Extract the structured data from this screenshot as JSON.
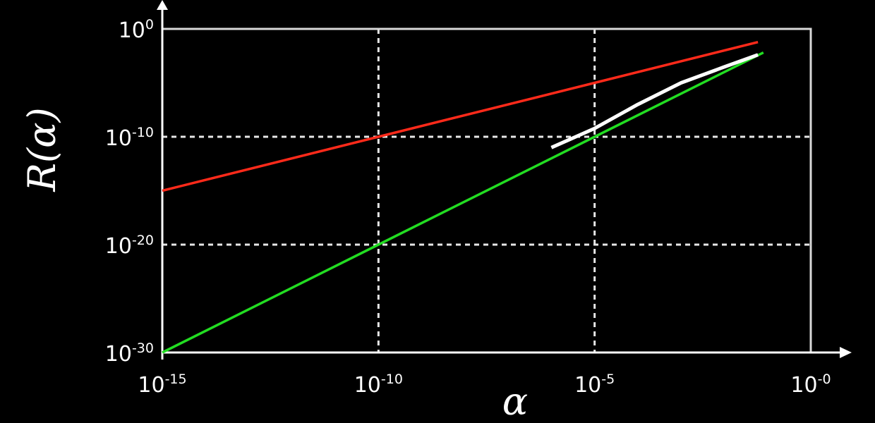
{
  "chart_data": {
    "type": "line",
    "xscale": "log",
    "yscale": "log",
    "xlabel": "α",
    "ylabel": "R(α)",
    "xlim": [
      1e-15,
      1
    ],
    "ylim": [
      1e-30,
      1
    ],
    "grid": "dashed",
    "x_ticks": [
      {
        "base": "10",
        "exp": "-15",
        "value": 1e-15
      },
      {
        "base": "10",
        "exp": "-10",
        "value": 1e-10
      },
      {
        "base": "10",
        "exp": "-5",
        "value": 1e-05
      },
      {
        "base": "10",
        "exp": "-0",
        "value": 1
      }
    ],
    "y_ticks": [
      {
        "base": "10",
        "exp": "0",
        "value": 1
      },
      {
        "base": "10",
        "exp": "-10",
        "value": 1e-10
      },
      {
        "base": "10",
        "exp": "-20",
        "value": 1e-20
      },
      {
        "base": "10",
        "exp": "-30",
        "value": 1e-30
      }
    ],
    "series": [
      {
        "color": "#ff2a1a",
        "x": [
          1e-15,
          1e-10,
          1e-05,
          0.06
        ],
        "y": [
          1e-15,
          1e-10,
          1e-05,
          0.06
        ]
      },
      {
        "color": "#22dd22",
        "x": [
          1e-15,
          1e-10,
          1e-05,
          0.08
        ],
        "y": [
          1e-30,
          1e-20,
          1e-10,
          0.0064
        ]
      },
      {
        "color": "#ffffff",
        "x": [
          1e-06,
          1e-05,
          0.0001,
          0.001,
          0.01,
          0.06
        ],
        "y": [
          1e-11,
          6e-10,
          1e-07,
          1e-05,
          0.0003,
          0.004
        ]
      }
    ]
  }
}
